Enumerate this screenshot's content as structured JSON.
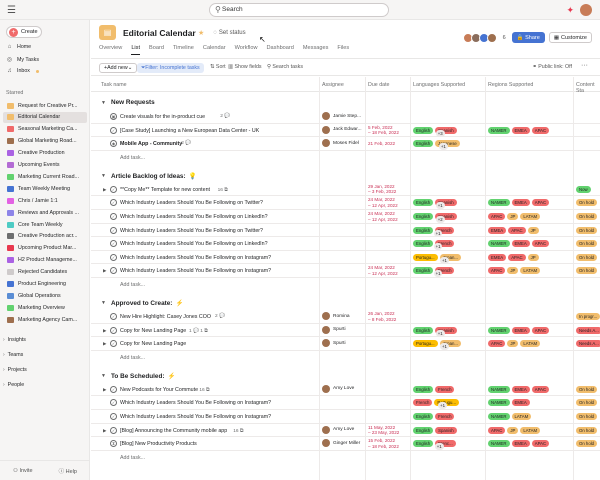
{
  "topbar": {
    "search_placeholder": "Search"
  },
  "sidebar": {
    "create_label": "Create",
    "nav": [
      {
        "label": "Home",
        "icon": "home-icon"
      },
      {
        "label": "My Tasks",
        "icon": "check-circle-icon"
      },
      {
        "label": "Inbox",
        "icon": "bell-icon"
      }
    ],
    "starred_heading": "Starred",
    "starred": [
      {
        "label": "Request for Creative Pr...",
        "color": "#f1bd6c"
      },
      {
        "label": "Editorial Calendar",
        "color": "#f1bd6c"
      },
      {
        "label": "Seasonal Marketing Ca...",
        "color": "#f06a6a"
      },
      {
        "label": "Global Marketing Road...",
        "color": "#9e6f4e"
      },
      {
        "label": "Creative Production",
        "color": "#aa62e3"
      },
      {
        "label": "Upcoming Events",
        "color": "#b36bd4"
      },
      {
        "label": "Marketing Current Road...",
        "color": "#62d26f"
      },
      {
        "label": "Team Weekly Meeting",
        "color": "#4573d2"
      },
      {
        "label": "Chris / Jamie 1:1",
        "color": "#e362e3"
      },
      {
        "label": "Reviews and Approvals ...",
        "color": "#8d84e8"
      },
      {
        "label": "Core Team Weekly",
        "color": "#4ecbc4"
      },
      {
        "label": "Creative Production acr...",
        "color": "#6d6e6f"
      },
      {
        "label": "Upcoming Product Mar...",
        "color": "#e8384f"
      },
      {
        "label": "H2 Product Manageme...",
        "color": "#aa62e3"
      },
      {
        "label": "Rejected Candidates",
        "color": "#cfcbcb"
      },
      {
        "label": "Product Engineering",
        "color": "#4573d2"
      },
      {
        "label": "Global Operations",
        "color": "#5a8dd4"
      },
      {
        "label": "Marketing Overview",
        "color": "#62d26f"
      },
      {
        "label": "Marketing Agency Cam...",
        "color": "#9e6f4e"
      }
    ],
    "sections": [
      "Insights",
      "Teams",
      "Projects",
      "People"
    ],
    "invite_label": "Invite",
    "help_label": "Help"
  },
  "header": {
    "title": "Editorial Calendar",
    "set_status": "Set status",
    "member_count": "6",
    "share_label": "Share",
    "customize_label": "Customize",
    "tabs": [
      "Overview",
      "List",
      "Board",
      "Timeline",
      "Calendar",
      "Workflow",
      "Dashboard",
      "Messages",
      "Files"
    ],
    "active_tab": "List"
  },
  "toolbar": {
    "add_new": "Add new",
    "filter": "Filter: Incomplete tasks",
    "sort": "Sort",
    "show_fields": "Show fields",
    "search_tasks": "Search tasks",
    "public_link": "Public link: Off"
  },
  "columns": {
    "task_name": "Task name",
    "assignee": "Assignee",
    "due_date": "Due date",
    "languages": "Languages Supported",
    "regions": "Regions Supported",
    "status": "Content Sta"
  },
  "colors": {
    "English": "#62d26f",
    "Spanish": "#f06a6a",
    "French": "#f06a6a",
    "Japanese": "#f1bd6c",
    "Portugu...": "#fcbd01",
    "Japan...": "#f1bd6c",
    "Frenc...": "#f06a6a",
    "NAMER": "#62d26f",
    "EMEA": "#f06a6a",
    "APAC": "#f06a6a",
    "JP": "#f1bd6c",
    "LATAM": "#f1bd6c",
    "Now": "#62d26f",
    "On hold": "#f1bd6c",
    "In progr...": "#f1bd6c",
    "Needs A...": "#f06a6a",
    "more": "#edeae9"
  },
  "add_task_label": "Add task...",
  "groups": [
    {
      "title": "New Requests",
      "emoji": "",
      "tasks": [
        {
          "name": "Create visuals for the in-product cue",
          "meta": "2 💬",
          "assignee": "Jamie Step...",
          "due": [],
          "langs": [],
          "regions": [],
          "status": "",
          "exp": false,
          "icon": "cal"
        },
        {
          "name": "[Case Study] Launching a New European Data Center - UK",
          "meta": "",
          "assignee": "Jack Edwar...",
          "due": [
            "5 Feb, 2022",
            "– 18 Feb, 2022"
          ],
          "langs": [
            "English",
            "Spanish",
            "+3"
          ],
          "regions": [
            "NAMER",
            "EMEA",
            "APAC"
          ],
          "status": "",
          "exp": false,
          "icon": "check"
        },
        {
          "name": "Mobile App - Community",
          "meta": "2 💬",
          "assignee": "Moses Fidel",
          "due": [
            "21 Feb, 2022"
          ],
          "langs": [
            "English",
            "Japanese",
            "+1"
          ],
          "regions": [],
          "status": "",
          "exp": false,
          "icon": "diamond",
          "bold": true
        }
      ]
    },
    {
      "title": "Article Backlog of Ideas:",
      "emoji": "💡",
      "tasks": [
        {
          "name": "**Copy Me** Template for new content",
          "meta": "16 ⧉",
          "assignee": "",
          "due": [
            "29 Jan, 2022",
            "– 3 Feb, 2022"
          ],
          "langs": [],
          "regions": [],
          "status": "Now",
          "exp": true,
          "icon": "check"
        },
        {
          "name": "Which Industry Leaders Should You Be Following on Twitter?",
          "meta": "",
          "assignee": "",
          "due": [
            "24 Mar, 2022",
            "– 12 Apr, 2022"
          ],
          "langs": [
            "English",
            "Spanish",
            "+1"
          ],
          "regions": [
            "NAMER",
            "EMEA",
            "APAC"
          ],
          "status": "On hold",
          "exp": false,
          "icon": "check"
        },
        {
          "name": "Which Industry Leaders Should You Be Following on LinkedIn?",
          "meta": "",
          "assignee": "",
          "due": [
            "24 Mar, 2022",
            "– 12 Apr, 2022"
          ],
          "langs": [
            "English",
            "Spanish",
            "+2"
          ],
          "regions": [
            "APAC",
            "JP",
            "LATAM"
          ],
          "status": "On hold",
          "exp": false,
          "icon": "check"
        },
        {
          "name": "Which Industry Leaders Should You Be Following on Twitter?",
          "meta": "",
          "assignee": "",
          "due": [],
          "langs": [
            "English",
            "French",
            "+1"
          ],
          "regions": [
            "EMEA",
            "APAC",
            "JP"
          ],
          "status": "On hold",
          "exp": false,
          "icon": "check"
        },
        {
          "name": "Which Industry Leaders Should You Be Following on LinkedIn?",
          "meta": "",
          "assignee": "",
          "due": [],
          "langs": [
            "English",
            "French",
            "+1"
          ],
          "regions": [
            "NAMER",
            "EMEA",
            "APAC"
          ],
          "status": "On hold",
          "exp": false,
          "icon": "check"
        },
        {
          "name": "Which Industry Leaders Should You Be Following on Instagram?",
          "meta": "",
          "assignee": "",
          "due": [],
          "langs": [
            "Portugu...",
            "Japan...",
            "+1"
          ],
          "regions": [
            "EMEA",
            "APAC",
            "JP"
          ],
          "status": "On hold",
          "exp": false,
          "icon": "check"
        },
        {
          "name": "Which Industry Leaders Should You Be Following on Instagram?",
          "meta": "",
          "assignee": "",
          "due": [
            "24 Mar, 2022",
            "– 12 Apr, 2022"
          ],
          "langs": [
            "English",
            "French",
            "+1"
          ],
          "regions": [
            "APAC",
            "JP",
            "LATAM"
          ],
          "status": "On hold",
          "exp": true,
          "icon": "check"
        }
      ]
    },
    {
      "title": "Approved to Create:",
      "emoji": "⚡",
      "tasks": [
        {
          "name": "New Hire Highlight: Casey Jones COO",
          "meta": "2 💬",
          "assignee": "Romina",
          "due": [
            "26 Jan, 2022",
            "– 8 Feb, 2022"
          ],
          "langs": [],
          "regions": [],
          "status": "In progr...",
          "exp": false,
          "icon": "check"
        },
        {
          "name": "Copy for New Landing Page",
          "meta": "1 💬 1 ⧉",
          "assignee": "Spurti",
          "due": [],
          "langs": [
            "English",
            "Spanish",
            "+1"
          ],
          "regions": [
            "NAMER",
            "EMEA",
            "APAC"
          ],
          "status": "Needs A...",
          "exp": true,
          "icon": "check"
        },
        {
          "name": "Copy for New Landing Page",
          "meta": "",
          "assignee": "Spurti",
          "due": [],
          "langs": [
            "Portugu...",
            "Japan...",
            "+1"
          ],
          "regions": [
            "APAC",
            "JP",
            "LATAM"
          ],
          "status": "Needs A...",
          "exp": true,
          "icon": "check"
        }
      ]
    },
    {
      "title": "To Be Scheduled:",
      "emoji": "⚡",
      "tasks": [
        {
          "name": "New Podcasts for Your Commute",
          "meta": "16 ⧉",
          "assignee": "Amy Love",
          "due": [],
          "langs": [
            "English",
            "French"
          ],
          "regions": [
            "NAMER",
            "EMEA",
            "APAC"
          ],
          "status": "On hold",
          "exp": true,
          "icon": "check"
        },
        {
          "name": "Which Industry Leaders Should You Be Following on Instagram?",
          "meta": "",
          "assignee": "",
          "due": [],
          "langs": [
            "French",
            "Portugu...",
            "+1"
          ],
          "regions": [
            "NAMER",
            "EMEA"
          ],
          "status": "On hold",
          "exp": false,
          "icon": "check"
        },
        {
          "name": "Which Industry Leaders Should You Be Following on Instagram?",
          "meta": "",
          "assignee": "",
          "due": [],
          "langs": [
            "English",
            "French"
          ],
          "regions": [
            "NAMER",
            "LATAM"
          ],
          "status": "On hold",
          "exp": false,
          "icon": "check"
        },
        {
          "name": "[Blog] Announcing the Community mobile app",
          "meta": "16 ⧉",
          "assignee": "Amy Love",
          "due": [
            "11 May, 2022",
            "– 23 May, 2022"
          ],
          "langs": [
            "English",
            "Spanish"
          ],
          "regions": [
            "APAC",
            "JP",
            "LATAM"
          ],
          "status": "On hold",
          "exp": true,
          "icon": "check"
        },
        {
          "name": "[Blog] New Productivity Products",
          "meta": "",
          "assignee": "Ginger Miller",
          "due": [
            "15 Feb, 2022",
            "– 18 Feb, 2022"
          ],
          "langs": [
            "English",
            "Frenc...",
            "+1"
          ],
          "regions": [
            "NAMER",
            "EMEA",
            "APAC"
          ],
          "status": "On hold",
          "exp": false,
          "icon": "hourglass"
        }
      ]
    }
  ]
}
